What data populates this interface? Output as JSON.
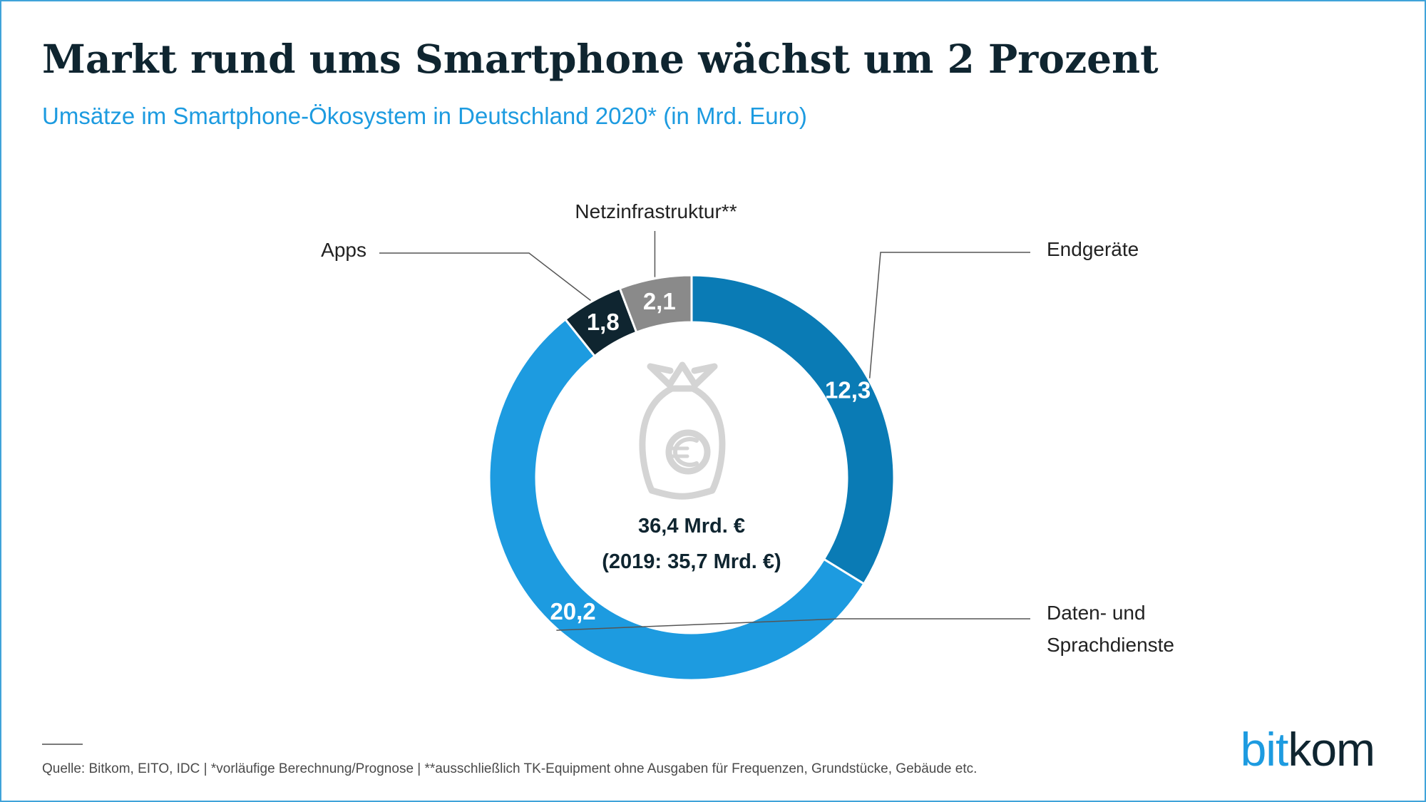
{
  "header": {
    "title": "Markt rund ums Smartphone wächst um 2 Prozent",
    "subtitle": "Umsätze im Smartphone-Ökosystem in Deutschland 2020* (in Mrd. Euro)"
  },
  "chart_data": {
    "type": "pie",
    "style": "donut",
    "categories": [
      "Endgeräte",
      "Daten- und Sprachdienste",
      "Apps",
      "Netzinfrastruktur**"
    ],
    "values": [
      12.3,
      20.2,
      1.8,
      2.1
    ],
    "value_labels": [
      "12,3",
      "20,2",
      "1,8",
      "2,1"
    ],
    "colors": [
      "#0a7bb5",
      "#1d9be0",
      "#0f2530",
      "#8a8a8a"
    ],
    "legend": "callout labels outside the ring",
    "center": {
      "icon": "money-bag-euro-icon",
      "total": "36,4 Mrd. €",
      "previous": "(2019: 35,7 Mrd. €)"
    }
  },
  "footer": {
    "source": "Quelle: Bitkom, EITO, IDC | *vorläufige Berechnung/Prognose | **ausschließlich TK-Equipment ohne Ausgaben für Frequenzen, Grundstücke, Gebäude etc.",
    "logo_part1": "bit",
    "logo_part2": "kom"
  }
}
